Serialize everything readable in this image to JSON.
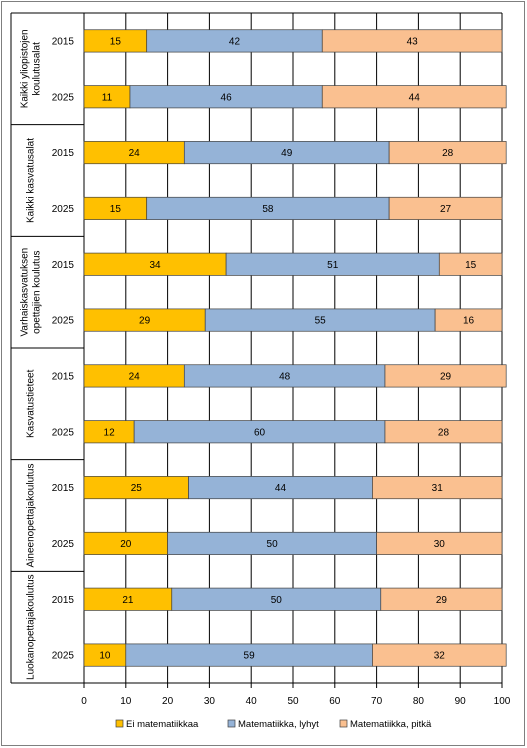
{
  "chart_data": {
    "type": "bar",
    "orientation": "horizontal",
    "stacked": true,
    "groups": [
      {
        "name": "Kaikki yliopistojen koulutusalat",
        "lines": [
          "Kaikki yliopistojen",
          "koulutusalat"
        ]
      },
      {
        "name": "Kaikki kasvatusalat",
        "lines": [
          "Kaikki kasvatusalat"
        ]
      },
      {
        "name": "Varhaiskasvatuksen opettajien koulutus",
        "lines": [
          "Varhaiskasvatuksen",
          "opettajien koulutus"
        ]
      },
      {
        "name": "Kasvatustieteet",
        "lines": [
          "Kasvatustieteet"
        ]
      },
      {
        "name": "Aineenopettajakoulutus",
        "lines": [
          "Aineenopettajakoulutus"
        ]
      },
      {
        "name": "Luokanopettajakoulutus",
        "lines": [
          "Luokanopettajakoulutus"
        ]
      }
    ],
    "categories": [
      "2015",
      "2025",
      "2015",
      "2025",
      "2015",
      "2025",
      "2015",
      "2025",
      "2015",
      "2025",
      "2015",
      "2025"
    ],
    "series": [
      {
        "name": "Ei matematiikkaa",
        "color": "#ffc000",
        "values": [
          15,
          11,
          24,
          15,
          34,
          29,
          24,
          12,
          25,
          20,
          21,
          10
        ]
      },
      {
        "name": "Matematiikka, lyhyt",
        "color": "#95b3d7",
        "values": [
          42,
          46,
          49,
          58,
          51,
          55,
          48,
          60,
          44,
          50,
          50,
          59
        ]
      },
      {
        "name": "Matematiikka, pitkä",
        "color": "#fac090",
        "values": [
          43,
          44,
          28,
          27,
          15,
          16,
          29,
          28,
          31,
          30,
          29,
          32
        ]
      }
    ],
    "xlim": [
      0,
      100
    ],
    "xticks": [
      0,
      10,
      20,
      30,
      40,
      50,
      60,
      70,
      80,
      90,
      100
    ],
    "grid": true,
    "legend": "bottom"
  }
}
